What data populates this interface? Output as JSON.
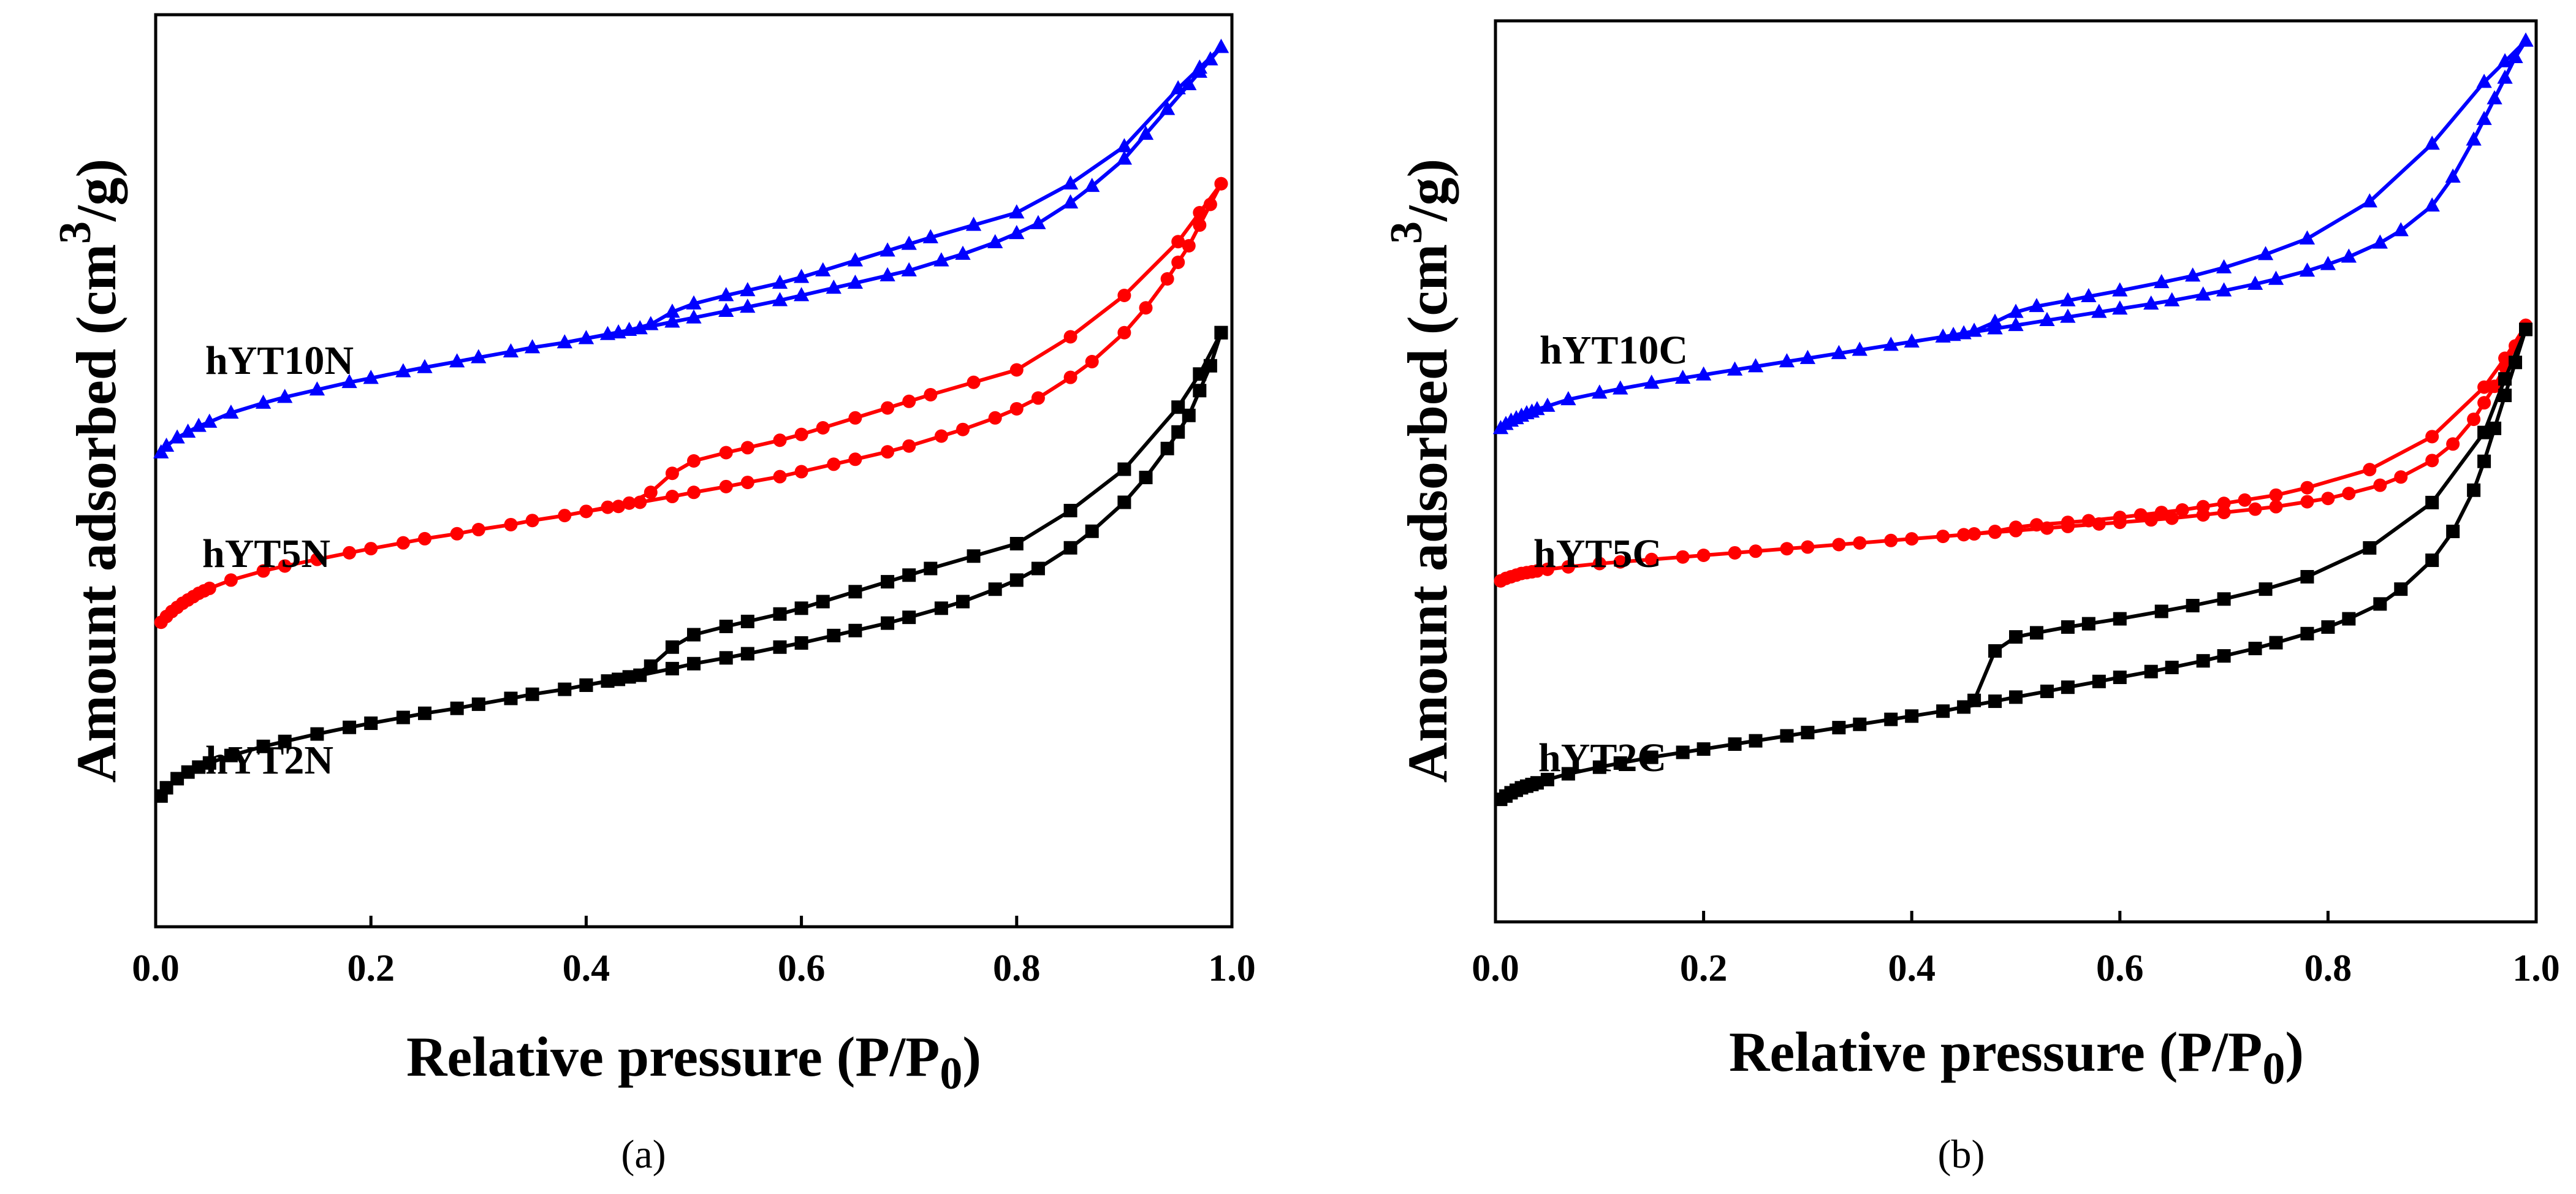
{
  "chart_data": [
    {
      "type": "line",
      "panel_label": "(a)",
      "xlabel": "Relative pressure (P/P0)",
      "xlabel_main": "Relative pressure (P/P",
      "xlabel_sub": "0",
      "xlabel_end": ")",
      "ylabel": "Amount adsorbed (cm3/g)",
      "ylabel_main": "Amount adsorbed (cm",
      "ylabel_sup": "3",
      "ylabel_end": "/g)",
      "xlim": [
        0.0,
        1.0
      ],
      "ylim": [
        0,
        100
      ],
      "y_ticks_visible": false,
      "xticks": [
        "0.0",
        "0.2",
        "0.4",
        "0.6",
        "0.8",
        "1.0"
      ],
      "series": [
        {
          "name": "hYT10N",
          "color": "#0000ff",
          "marker": "triangle",
          "adsorption": {
            "x": [
              0.005,
              0.01,
              0.02,
              0.03,
              0.04,
              0.05,
              0.07,
              0.1,
              0.12,
              0.15,
              0.18,
              0.2,
              0.23,
              0.25,
              0.28,
              0.3,
              0.33,
              0.35,
              0.38,
              0.4,
              0.43,
              0.45,
              0.48,
              0.5,
              0.53,
              0.55,
              0.58,
              0.6,
              0.63,
              0.65,
              0.68,
              0.7,
              0.73,
              0.75,
              0.78,
              0.8,
              0.82,
              0.85,
              0.87,
              0.9,
              0.92,
              0.94,
              0.96,
              0.97,
              0.98,
              0.99
            ],
            "y": [
              49.0,
              49.8,
              50.8,
              51.5,
              52.2,
              52.7,
              53.8,
              55.0,
              55.7,
              56.6,
              57.5,
              58.0,
              58.8,
              59.3,
              60.0,
              60.5,
              61.2,
              61.7,
              62.3,
              62.8,
              63.5,
              64.0,
              64.8,
              65.3,
              66.1,
              66.6,
              67.4,
              68.0,
              68.9,
              69.5,
              70.4,
              71.0,
              72.2,
              73.0,
              74.4,
              75.5,
              76.7,
              79.2,
              81.2,
              84.5,
              87.5,
              90.5,
              93.5,
              95.0,
              96.5,
              98.0
            ]
          },
          "desorption": {
            "x": [
              0.99,
              0.97,
              0.95,
              0.9,
              0.85,
              0.8,
              0.76,
              0.72,
              0.7,
              0.68,
              0.65,
              0.62,
              0.6,
              0.58,
              0.55,
              0.53,
              0.5,
              0.48,
              0.46,
              0.44,
              0.42,
              0.4
            ],
            "y": [
              98.0,
              95.5,
              93.0,
              86.0,
              81.5,
              78.0,
              76.5,
              75.0,
              74.2,
              73.4,
              72.2,
              71.0,
              70.2,
              69.5,
              68.6,
              68.0,
              67.0,
              66.0,
              64.5,
              63.8,
              63.3,
              62.8
            ]
          }
        },
        {
          "name": "hYT5N",
          "color": "#ff0000",
          "marker": "circle",
          "adsorption": {
            "x": [
              0.005,
              0.01,
              0.015,
              0.02,
              0.025,
              0.03,
              0.035,
              0.04,
              0.045,
              0.05,
              0.07,
              0.1,
              0.12,
              0.15,
              0.18,
              0.2,
              0.23,
              0.25,
              0.28,
              0.3,
              0.33,
              0.35,
              0.38,
              0.4,
              0.43,
              0.45,
              0.48,
              0.5,
              0.53,
              0.55,
              0.58,
              0.6,
              0.63,
              0.65,
              0.68,
              0.7,
              0.73,
              0.75,
              0.78,
              0.8,
              0.82,
              0.85,
              0.87,
              0.9,
              0.92,
              0.94,
              0.95,
              0.96,
              0.97,
              0.98,
              0.99
            ],
            "y": [
              28.5,
              29.2,
              29.8,
              30.3,
              30.8,
              31.2,
              31.6,
              32.0,
              32.3,
              32.6,
              33.6,
              34.7,
              35.3,
              36.1,
              36.9,
              37.4,
              38.1,
              38.6,
              39.2,
              39.7,
              40.3,
              40.8,
              41.4,
              41.9,
              42.5,
              43.0,
              43.7,
              44.2,
              44.9,
              45.4,
              46.1,
              46.7,
              47.6,
              48.2,
              49.1,
              49.8,
              51.0,
              51.8,
              53.2,
              54.3,
              55.6,
              58.1,
              60.0,
              63.5,
              66.5,
              70.0,
              72.0,
              74.0,
              76.5,
              79.0,
              81.5
            ]
          },
          "desorption": {
            "x": [
              0.99,
              0.97,
              0.95,
              0.9,
              0.85,
              0.8,
              0.76,
              0.72,
              0.7,
              0.68,
              0.65,
              0.62,
              0.6,
              0.58,
              0.55,
              0.53,
              0.5,
              0.48,
              0.46,
              0.44,
              0.42,
              0.4
            ],
            "y": [
              81.5,
              78.0,
              74.5,
              68.0,
              63.0,
              59.0,
              57.5,
              56.0,
              55.2,
              54.4,
              53.2,
              52.0,
              51.2,
              50.5,
              49.6,
              49.0,
              48.0,
              46.5,
              44.2,
              42.9,
              42.4,
              41.9
            ]
          }
        },
        {
          "name": "hYT2N",
          "color": "#000000",
          "marker": "square",
          "adsorption": {
            "x": [
              0.005,
              0.01,
              0.02,
              0.03,
              0.04,
              0.05,
              0.07,
              0.1,
              0.12,
              0.15,
              0.18,
              0.2,
              0.23,
              0.25,
              0.28,
              0.3,
              0.33,
              0.35,
              0.38,
              0.4,
              0.43,
              0.45,
              0.48,
              0.5,
              0.53,
              0.55,
              0.58,
              0.6,
              0.63,
              0.65,
              0.68,
              0.7,
              0.73,
              0.75,
              0.78,
              0.8,
              0.82,
              0.85,
              0.87,
              0.9,
              0.92,
              0.94,
              0.95,
              0.96,
              0.97,
              0.98,
              0.99
            ],
            "y": [
              7.5,
              8.5,
              9.6,
              10.4,
              11.0,
              11.5,
              12.4,
              13.5,
              14.1,
              15.0,
              15.8,
              16.3,
              17.0,
              17.5,
              18.1,
              18.6,
              19.3,
              19.8,
              20.4,
              20.9,
              21.6,
              22.1,
              22.9,
              23.5,
              24.2,
              24.7,
              25.5,
              26.0,
              26.9,
              27.5,
              28.4,
              29.1,
              30.2,
              31.0,
              32.5,
              33.6,
              35.0,
              37.5,
              39.5,
              43.0,
              46.0,
              49.5,
              51.5,
              53.5,
              56.5,
              59.5,
              63.5
            ]
          },
          "desorption": {
            "x": [
              0.99,
              0.97,
              0.95,
              0.9,
              0.85,
              0.8,
              0.76,
              0.72,
              0.7,
              0.68,
              0.65,
              0.62,
              0.6,
              0.58,
              0.55,
              0.53,
              0.5,
              0.48,
              0.46,
              0.44,
              0.42,
              0.4
            ],
            "y": [
              63.5,
              58.5,
              54.5,
              47.0,
              42.0,
              38.0,
              36.5,
              35.0,
              34.2,
              33.4,
              32.2,
              31.0,
              30.2,
              29.5,
              28.6,
              28.0,
              27.0,
              25.5,
              23.2,
              21.9,
              21.4,
              20.9
            ]
          }
        }
      ]
    },
    {
      "type": "line",
      "panel_label": "(b)",
      "xlabel": "Relative pressure (P/P0)",
      "xlabel_main": "Relative pressure (P/P",
      "xlabel_sub": "0",
      "xlabel_end": ")",
      "ylabel": "Amount adsorbed (cm3/g)",
      "ylabel_main": "Amount adsorbed (cm",
      "ylabel_sup": "3",
      "ylabel_end": "/g)",
      "xlim": [
        0.0,
        1.0
      ],
      "ylim": [
        0,
        100
      ],
      "y_ticks_visible": false,
      "xticks": [
        "0.0",
        "0.2",
        "0.4",
        "0.6",
        "0.8",
        "1.0"
      ],
      "series": [
        {
          "name": "hYT10C",
          "color": "#0000ff",
          "marker": "triangle",
          "adsorption": {
            "x": [
              0.005,
              0.01,
              0.015,
              0.02,
              0.025,
              0.03,
              0.035,
              0.04,
              0.05,
              0.07,
              0.1,
              0.12,
              0.15,
              0.18,
              0.2,
              0.23,
              0.25,
              0.28,
              0.3,
              0.33,
              0.35,
              0.38,
              0.4,
              0.43,
              0.45,
              0.48,
              0.5,
              0.53,
              0.55,
              0.58,
              0.6,
              0.63,
              0.65,
              0.68,
              0.7,
              0.73,
              0.75,
              0.78,
              0.8,
              0.82,
              0.85,
              0.87,
              0.9,
              0.92,
              0.94,
              0.95,
              0.96,
              0.97,
              0.98,
              0.99
            ],
            "y": [
              52.5,
              53.0,
              53.4,
              53.7,
              54.0,
              54.3,
              54.5,
              54.8,
              55.2,
              56.0,
              56.8,
              57.3,
              58.0,
              58.6,
              59.0,
              59.6,
              60.0,
              60.6,
              61.0,
              61.6,
              62.0,
              62.6,
              63.0,
              63.6,
              64.0,
              64.6,
              65.0,
              65.6,
              66.0,
              66.6,
              67.0,
              67.6,
              68.0,
              68.7,
              69.2,
              70.0,
              70.6,
              71.6,
              72.4,
              73.3,
              75.0,
              76.5,
              79.5,
              83.0,
              87.5,
              90.0,
              92.5,
              95.0,
              97.5,
              99.5
            ]
          },
          "desorption": {
            "x": [
              0.99,
              0.97,
              0.95,
              0.9,
              0.84,
              0.78,
              0.74,
              0.7,
              0.67,
              0.64,
              0.6,
              0.57,
              0.55,
              0.52,
              0.5,
              0.48,
              0.46,
              0.44
            ],
            "y": [
              99.5,
              97.0,
              94.5,
              87.0,
              80.0,
              75.5,
              73.6,
              72.0,
              71.0,
              70.2,
              69.2,
              68.5,
              68.0,
              67.3,
              66.6,
              65.4,
              64.3,
              63.8
            ]
          }
        },
        {
          "name": "hYT5C",
          "color": "#ff0000",
          "marker": "circle",
          "adsorption": {
            "x": [
              0.005,
              0.01,
              0.015,
              0.02,
              0.025,
              0.03,
              0.035,
              0.04,
              0.05,
              0.07,
              0.1,
              0.12,
              0.15,
              0.18,
              0.2,
              0.23,
              0.25,
              0.28,
              0.3,
              0.33,
              0.35,
              0.38,
              0.4,
              0.43,
              0.45,
              0.48,
              0.5,
              0.53,
              0.55,
              0.58,
              0.6,
              0.63,
              0.65,
              0.68,
              0.7,
              0.73,
              0.75,
              0.78,
              0.8,
              0.82,
              0.85,
              0.87,
              0.9,
              0.92,
              0.94,
              0.95,
              0.96,
              0.97,
              0.98,
              0.99
            ],
            "y": [
              34.0,
              34.3,
              34.5,
              34.7,
              34.9,
              35.0,
              35.1,
              35.2,
              35.4,
              35.7,
              36.1,
              36.3,
              36.6,
              36.9,
              37.1,
              37.4,
              37.6,
              37.9,
              38.1,
              38.4,
              38.6,
              38.9,
              39.1,
              39.4,
              39.6,
              39.9,
              40.1,
              40.4,
              40.6,
              40.9,
              41.1,
              41.4,
              41.6,
              42.0,
              42.3,
              42.7,
              43.0,
              43.6,
              44.0,
              44.6,
              45.6,
              46.6,
              48.6,
              50.6,
              53.6,
              55.6,
              57.6,
              60.0,
              62.5,
              65.0
            ]
          },
          "desorption": {
            "x": [
              0.99,
              0.97,
              0.95,
              0.9,
              0.84,
              0.78,
              0.75,
              0.72,
              0.7,
              0.68,
              0.66,
              0.64,
              0.62,
              0.6,
              0.57,
              0.55,
              0.52,
              0.5,
              0.48,
              0.46
            ],
            "y": [
              65.0,
              61.0,
              57.5,
              51.5,
              47.5,
              45.3,
              44.4,
              43.8,
              43.4,
              43.0,
              42.6,
              42.3,
              42.0,
              41.7,
              41.3,
              41.1,
              40.8,
              40.5,
              40.0,
              39.7
            ]
          }
        },
        {
          "name": "hYT2C",
          "color": "#000000",
          "marker": "square",
          "adsorption": {
            "x": [
              0.005,
              0.01,
              0.015,
              0.02,
              0.025,
              0.03,
              0.035,
              0.04,
              0.05,
              0.07,
              0.1,
              0.12,
              0.15,
              0.18,
              0.2,
              0.23,
              0.25,
              0.28,
              0.3,
              0.33,
              0.35,
              0.38,
              0.4,
              0.43,
              0.45,
              0.48,
              0.5,
              0.53,
              0.55,
              0.58,
              0.6,
              0.63,
              0.65,
              0.68,
              0.7,
              0.73,
              0.75,
              0.78,
              0.8,
              0.82,
              0.85,
              0.87,
              0.9,
              0.92,
              0.94,
              0.95,
              0.96,
              0.97,
              0.98,
              0.99
            ],
            "y": [
              7.5,
              7.9,
              8.3,
              8.6,
              8.9,
              9.1,
              9.3,
              9.5,
              9.9,
              10.6,
              11.4,
              11.9,
              12.6,
              13.2,
              13.6,
              14.2,
              14.6,
              15.2,
              15.6,
              16.2,
              16.6,
              17.2,
              17.6,
              18.2,
              18.7,
              19.4,
              19.9,
              20.6,
              21.1,
              21.8,
              22.3,
              23.0,
              23.5,
              24.3,
              24.9,
              25.8,
              26.5,
              27.6,
              28.4,
              29.4,
              31.2,
              33.0,
              36.5,
              40.0,
              45.0,
              48.5,
              52.5,
              56.5,
              60.5,
              64.5
            ]
          },
          "desorption": {
            "x": [
              0.99,
              0.97,
              0.95,
              0.9,
              0.84,
              0.78,
              0.74,
              0.7,
              0.67,
              0.64,
              0.6,
              0.57,
              0.55,
              0.52,
              0.5,
              0.48,
              0.46
            ],
            "y": [
              64.5,
              58.5,
              52.0,
              43.5,
              38.0,
              34.5,
              33.0,
              31.8,
              31.0,
              30.3,
              29.4,
              28.8,
              28.4,
              27.7,
              27.2,
              25.5,
              19.5
            ]
          }
        }
      ]
    }
  ]
}
